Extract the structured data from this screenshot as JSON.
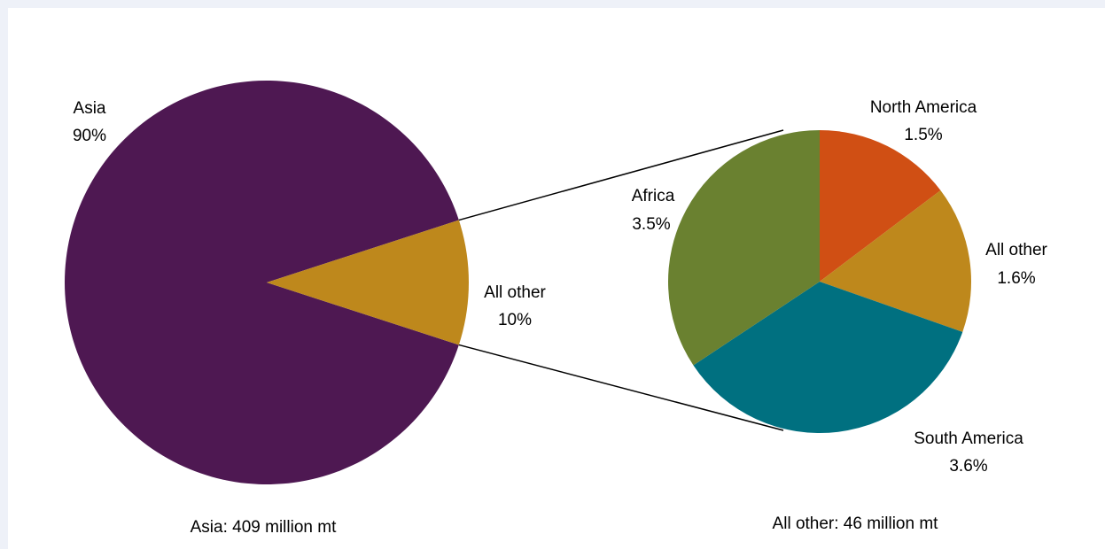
{
  "chart_data": {
    "type": "pie",
    "subtype": "pie-of-pie",
    "main_pie": {
      "caption": "Asia: 409 million mt",
      "slices": [
        {
          "name": "Asia",
          "value": 90,
          "label": "90%",
          "color": "#4e1852"
        },
        {
          "name": "All other",
          "value": 10,
          "label": "10%",
          "color": "#be881c"
        }
      ]
    },
    "secondary_pie": {
      "caption": "All other: 46 million mt",
      "slices": [
        {
          "name": "North America",
          "value": 1.5,
          "label": "1.5%",
          "color": "#d04f14"
        },
        {
          "name": "All other",
          "value": 1.6,
          "label": "1.6%",
          "color": "#be881c"
        },
        {
          "name": "South America",
          "value": 3.6,
          "label": "3.6%",
          "color": "#007080"
        },
        {
          "name": "Africa",
          "value": 3.5,
          "label": "3.5%",
          "color": "#6a8130"
        }
      ]
    },
    "connector_color": "#000000",
    "legend": "none"
  }
}
